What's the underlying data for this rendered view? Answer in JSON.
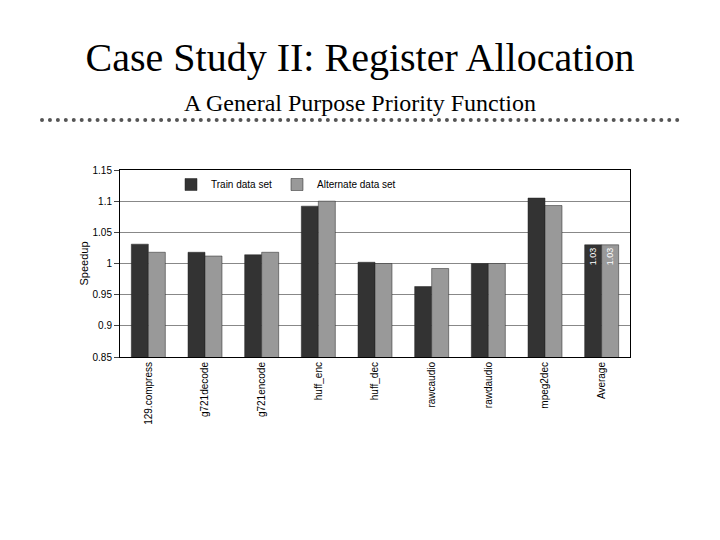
{
  "chart_data": {
    "type": "bar",
    "title": "Case Study II: Register Allocation",
    "subtitle": "A General Purpose Priority Function",
    "y_label": "Speedup",
    "categories": [
      "129.compress",
      "g721decode",
      "g721encode",
      "huff_enc",
      "huff_dec",
      "rawcaudio",
      "rawdaudio",
      "mpeg2dec",
      "Average"
    ],
    "series": [
      {
        "name": "Train data set",
        "color": "#333333",
        "values": [
          1.031,
          1.018,
          1.014,
          1.092,
          1.002,
          0.963,
          1.0,
          1.105,
          1.03
        ],
        "value_labels": [
          null,
          null,
          null,
          null,
          null,
          null,
          null,
          null,
          "1.03"
        ]
      },
      {
        "name": "Alternate data set",
        "color": "#999999",
        "values": [
          1.018,
          1.012,
          1.018,
          1.1,
          1.0,
          0.992,
          1.0,
          1.093,
          1.03
        ],
        "value_labels": [
          null,
          null,
          null,
          null,
          null,
          null,
          null,
          null,
          "1.03"
        ]
      }
    ],
    "ylim": [
      0.85,
      1.15
    ],
    "yticks": [
      0.85,
      0.9,
      0.95,
      1,
      1.05,
      1.1,
      1.15
    ],
    "grid": true,
    "legend": "top",
    "data_labels": true
  }
}
